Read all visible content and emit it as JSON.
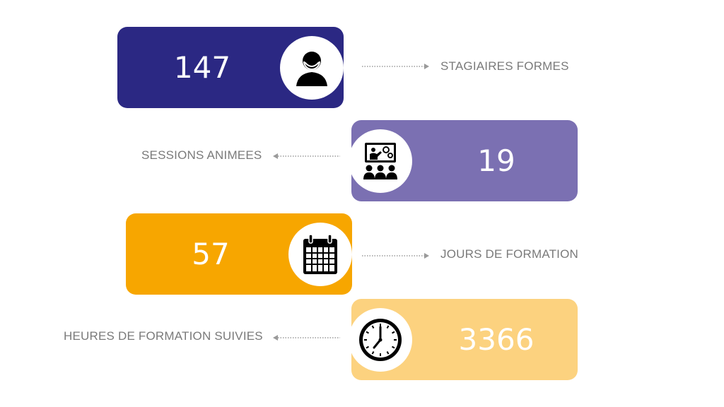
{
  "stats": [
    {
      "value": "147",
      "label": "STAGIAIRES FORMES",
      "color": "#2b2883",
      "icon": "trainee-icon"
    },
    {
      "value": "19",
      "label": "SESSIONS ANIMEES",
      "color": "#7b70b2",
      "icon": "presentation-icon"
    },
    {
      "value": "57",
      "label": "JOURS DE FORMATION",
      "color": "#f7a600",
      "icon": "calendar-icon"
    },
    {
      "value": "3366",
      "label": "HEURES DE FORMATION SUIVIES",
      "color": "#fcd27f",
      "icon": "clock-icon"
    }
  ]
}
